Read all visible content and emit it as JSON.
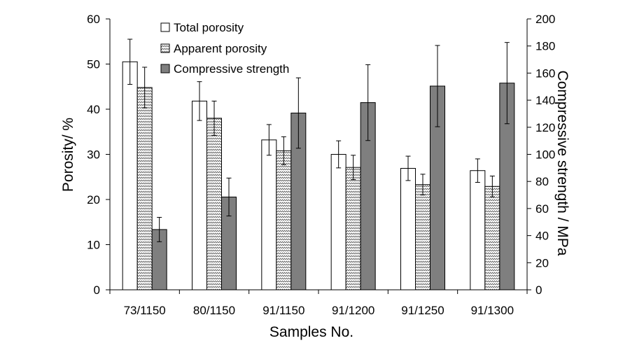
{
  "chart_data": {
    "type": "bar",
    "xlabel": "Samples No.",
    "ylabel_left": "Porosity/ %",
    "ylabel_right": "Compressive strength / MPa",
    "categories": [
      "73/1150",
      "80/1150",
      "91/1150",
      "91/1200",
      "91/1250",
      "91/1300"
    ],
    "ylim_left": [
      0,
      60
    ],
    "ylim_right": [
      0,
      200
    ],
    "yticks_left": [
      "0",
      "10",
      "20",
      "30",
      "40",
      "50",
      "60"
    ],
    "yticks_right": [
      "0",
      "20",
      "40",
      "60",
      "80",
      "100",
      "120",
      "140",
      "160",
      "180",
      "200"
    ],
    "grid": false,
    "legend_position": "top-left",
    "series": [
      {
        "name": "Total porosity",
        "axis": "left",
        "pattern": "white",
        "values": [
          50.5,
          41.8,
          33.2,
          30.0,
          26.9,
          26.4
        ],
        "errors": [
          5.0,
          4.3,
          3.4,
          3.0,
          2.7,
          2.6
        ]
      },
      {
        "name": "Apparent porosity",
        "axis": "left",
        "pattern": "zigzag",
        "values": [
          44.8,
          38.0,
          30.8,
          27.1,
          23.3,
          22.9
        ],
        "errors": [
          4.5,
          3.8,
          3.1,
          2.7,
          2.3,
          2.3
        ]
      },
      {
        "name": "Compressive strength",
        "axis": "right",
        "pattern": "gray",
        "values": [
          44.5,
          68.5,
          130.5,
          138.2,
          150.4,
          152.6
        ],
        "errors": [
          9,
          14,
          26,
          28,
          30,
          30
        ]
      }
    ],
    "colors": {
      "gray_fill": "#7f7f7f",
      "outline": "#000000",
      "white_fill": "#ffffff"
    }
  }
}
